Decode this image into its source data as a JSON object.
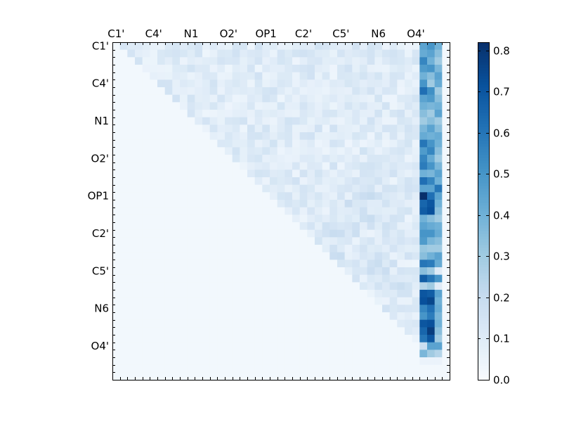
{
  "chart_data": {
    "type": "heatmap",
    "x_tick_labels": [
      "C1'",
      "C4'",
      "N1",
      "O2'",
      "OP1",
      "C2'",
      "C5'",
      "N6",
      "O4'"
    ],
    "y_tick_labels": [
      "C1'",
      "C4'",
      "N1",
      "O2'",
      "OP1",
      "C2'",
      "C5'",
      "N6",
      "O4'"
    ],
    "grid_size": 45,
    "colormap": "Blues",
    "colorbar": {
      "min": 0.0,
      "max": 0.82,
      "ticks": [
        "0.0",
        "0.1",
        "0.2",
        "0.3",
        "0.4",
        "0.5",
        "0.6",
        "0.7",
        "0.8"
      ],
      "placement": "right"
    },
    "background_value": 0.02,
    "upper_triangle_value": 0.1,
    "dense_columns": [
      {
        "col": 41,
        "values": [
          0.45,
          0.42,
          0.55,
          0.48,
          0.4,
          0.5,
          0.62,
          0.45,
          0.4,
          0.35,
          0.3,
          0.38,
          0.42,
          0.6,
          0.48,
          0.55,
          0.58,
          0.4,
          0.62,
          0.45,
          0.82,
          0.65,
          0.68,
          0.4,
          0.45,
          0.5,
          0.48,
          0.32,
          0.35,
          0.6,
          0.35,
          0.68,
          0.25,
          0.7,
          0.72,
          0.55,
          0.5,
          0.7,
          0.65,
          0.6,
          0.18,
          0.38,
          0.05,
          0.02,
          0.02
        ]
      },
      {
        "col": 42,
        "values": [
          0.5,
          0.45,
          0.4,
          0.5,
          0.35,
          0.3,
          0.52,
          0.48,
          0.38,
          0.3,
          0.35,
          0.45,
          0.4,
          0.5,
          0.55,
          0.42,
          0.5,
          0.38,
          0.55,
          0.45,
          0.62,
          0.7,
          0.72,
          0.35,
          0.42,
          0.5,
          0.38,
          0.3,
          0.4,
          0.58,
          0.3,
          0.6,
          0.3,
          0.68,
          0.75,
          0.62,
          0.58,
          0.72,
          0.78,
          0.7,
          0.45,
          0.3,
          0.05,
          0.02,
          0.02
        ]
      },
      {
        "col": 43,
        "values": [
          0.4,
          0.35,
          0.3,
          0.38,
          0.45,
          0.42,
          0.3,
          0.35,
          0.4,
          0.45,
          0.3,
          0.35,
          0.42,
          0.4,
          0.35,
          0.3,
          0.38,
          0.45,
          0.4,
          0.6,
          0.45,
          0.4,
          0.35,
          0.3,
          0.4,
          0.42,
          0.35,
          0.3,
          0.45,
          0.42,
          0.1,
          0.5,
          0.1,
          0.45,
          0.4,
          0.42,
          0.38,
          0.4,
          0.35,
          0.3,
          0.45,
          0.25,
          0.05,
          0.02,
          0.02
        ]
      }
    ]
  }
}
